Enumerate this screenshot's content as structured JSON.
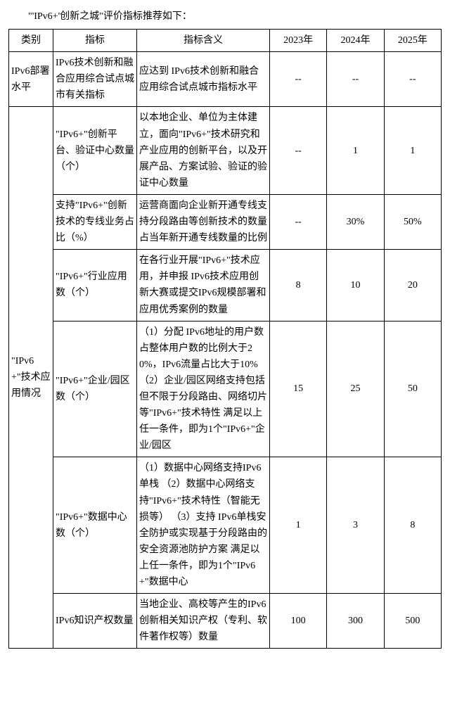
{
  "title": "\"'IPv6+'创新之城\"评价指标推荐如下：",
  "headers": {
    "category": "类别",
    "indicator": "指标",
    "definition": "指标含义",
    "y2023": "2023年",
    "y2024": "2024年",
    "y2025": "2025年"
  },
  "sections": {
    "s0": {
      "category": "IPv6部署水平",
      "rows": {
        "r0": {
          "indicator": "IPv6技术创新和融合应用综合试点城市有关指标",
          "definition": "应达到 IPv6技术创新和融合应用综合试点城市指标水平",
          "y2023": "--",
          "y2024": "--",
          "y2025": "--"
        }
      }
    },
    "s1": {
      "category": "\"IPv6+\"技术应用情况",
      "rows": {
        "r0": {
          "indicator": "\"IPv6+\"创新平台、验证中心数量（个）",
          "definition": "以本地企业、单位为主体建立，面向\"IPv6+\"技术研究和产业应用的创新平台，以及开展产品、方案试验、验证的验证中心数量",
          "y2023": "--",
          "y2024": "1",
          "y2025": "1"
        },
        "r1": {
          "indicator": "支持\"IPv6+\"创新技术的专线业务占比（%）",
          "definition": "运营商面向企业新开通专线支持分段路由等创新技术的数量占当年新开通专线数量的比例",
          "y2023": "--",
          "y2024": "30%",
          "y2025": "50%"
        },
        "r2": {
          "indicator": "\"IPv6+\"行业应用数（个）",
          "definition": "在各行业开展\"IPv6+\"技术应用，并申报 IPv6技术应用创新大赛或提交IPv6规模部署和应用优秀案例的数量",
          "y2023": "8",
          "y2024": "10",
          "y2025": "20"
        },
        "r3": {
          "indicator": "\"IPv6+\"企业/园区数（个）",
          "definition": "（1）分配 IPv6地址的用户数占整体用户数的比例大于20%，IPv6流量占比大于10%\n（2）企业/园区网络支持包括但不限于分段路由、网络切片等\"IPv6+\"技术特性\n满足以上任一条件，即为1个\"IPv6+\"企业/园区",
          "y2023": "15",
          "y2024": "25",
          "y2025": "50"
        },
        "r4": {
          "indicator": "\"IPv6+\"数据中心数（个）",
          "definition": "（1）数据中心网络支持IPv6单栈\n（2）数据中心网络支持\"IPv6+\"技术特性（智能无损等）\n（3）支持 IPv6单栈安全防护或实现基于分段路由的安全资源池防护方案\n满足以上任一条件，即为1个\"IPv6+\"数据中心",
          "y2023": "1",
          "y2024": "3",
          "y2025": "8"
        },
        "r5": {
          "indicator": "IPv6知识产权数量",
          "definition": "当地企业、高校等产生的IPv6创新相关知识产权（专利、软件著作权等）数量",
          "y2023": "100",
          "y2024": "300",
          "y2025": "500"
        }
      }
    }
  }
}
